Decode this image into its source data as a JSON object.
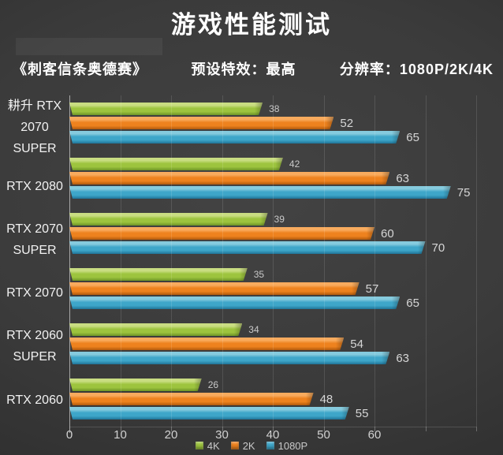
{
  "title": "游戏性能测试",
  "subtitle": {
    "game": "《刺客信条奥德赛》",
    "preset": "预设特效：最高",
    "resolution": "分辨率：1080P/2K/4K"
  },
  "chart_data": {
    "type": "bar",
    "orientation": "horizontal",
    "title": "游戏性能测试",
    "categories": [
      "耕升 RTX 2070 SUPER",
      "RTX 2080",
      "RTX 2070 SUPER",
      "RTX 2070",
      "RTX 2060 SUPER",
      "RTX 2060"
    ],
    "category_lines": [
      [
        "耕升 RTX",
        "2070",
        "SUPER"
      ],
      [
        "RTX 2080"
      ],
      [
        "RTX 2070",
        "SUPER"
      ],
      [
        "RTX 2070"
      ],
      [
        "RTX 2060",
        "SUPER"
      ],
      [
        "RTX 2060"
      ]
    ],
    "series": [
      {
        "name": "4K",
        "color": "#9dc43e",
        "color_light": "#c9dd82",
        "color_dark": "#6d9427",
        "values": [
          38,
          42,
          39,
          35,
          34,
          26
        ]
      },
      {
        "name": "2K",
        "color": "#ee821e",
        "color_light": "#f8ab5e",
        "color_dark": "#b05a0d",
        "values": [
          52,
          63,
          60,
          57,
          54,
          48
        ]
      },
      {
        "name": "1080P",
        "color": "#3ea6c9",
        "color_light": "#86cbde",
        "color_dark": "#1f7397",
        "values": [
          65,
          75,
          70,
          65,
          63,
          55
        ]
      }
    ],
    "xlim": [
      0,
      80
    ],
    "x_ticks": [
      0,
      10,
      20,
      30,
      40,
      50,
      60
    ],
    "gridline_step": 10,
    "grid": "vertical",
    "legend_position": "bottom",
    "value_labels": "outside-end",
    "background": "#3b3b3b",
    "text_color": "#d6d6d6"
  }
}
